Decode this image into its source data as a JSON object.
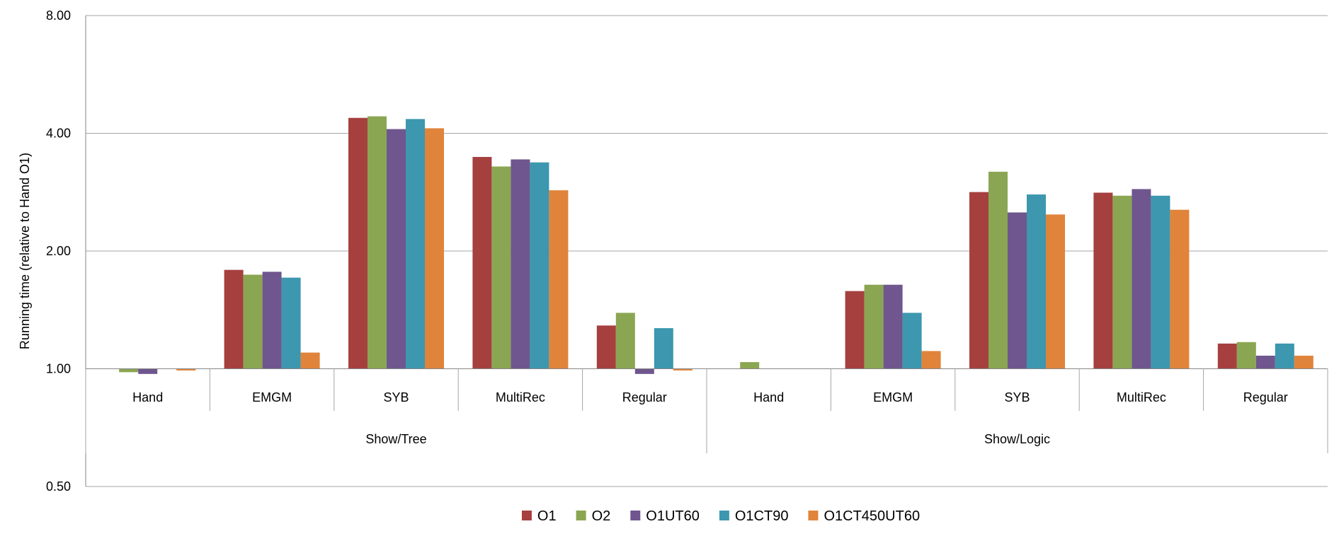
{
  "chart_data": {
    "type": "bar",
    "ylabel": "Running time (relative to Hand O1)",
    "yscale": "log2",
    "ylim": [
      0.5,
      8
    ],
    "yticks": [
      "8.00",
      "4.00",
      "2.00",
      "1.00",
      "0.50"
    ],
    "ytick_values": [
      8,
      4,
      2,
      1,
      0.5
    ],
    "baseline": 1,
    "grid": true,
    "legend_position": "bottom",
    "groups": [
      {
        "label": "Show/Tree",
        "categories": [
          "Hand",
          "EMGM",
          "SYB",
          "MultiRec",
          "Regular"
        ]
      },
      {
        "label": "Show/Logic",
        "categories": [
          "Hand",
          "EMGM",
          "SYB",
          "MultiRec",
          "Regular"
        ]
      }
    ],
    "series": [
      {
        "name": "O1",
        "color": "#A5403F",
        "values": [
          1.0,
          1.79,
          4.38,
          3.48,
          1.29,
          1.0,
          1.58,
          2.83,
          2.82,
          1.16
        ]
      },
      {
        "name": "O2",
        "color": "#8BA652",
        "values": [
          0.98,
          1.74,
          4.42,
          3.29,
          1.39,
          1.04,
          1.64,
          3.19,
          2.77,
          1.17
        ]
      },
      {
        "name": "O1UT60",
        "color": "#6F568E",
        "values": [
          0.97,
          1.77,
          4.1,
          3.43,
          0.97,
          1.0,
          1.64,
          2.51,
          2.88,
          1.08
        ]
      },
      {
        "name": "O1CT90",
        "color": "#3C97AF",
        "values": [
          1.0,
          1.71,
          4.35,
          3.37,
          1.27,
          1.0,
          1.39,
          2.79,
          2.77,
          1.16
        ]
      },
      {
        "name": "O1CT450UT60",
        "color": "#E0843B",
        "values": [
          0.99,
          1.1,
          4.12,
          2.86,
          0.99,
          1.0,
          1.11,
          2.48,
          2.55,
          1.08
        ]
      }
    ]
  }
}
